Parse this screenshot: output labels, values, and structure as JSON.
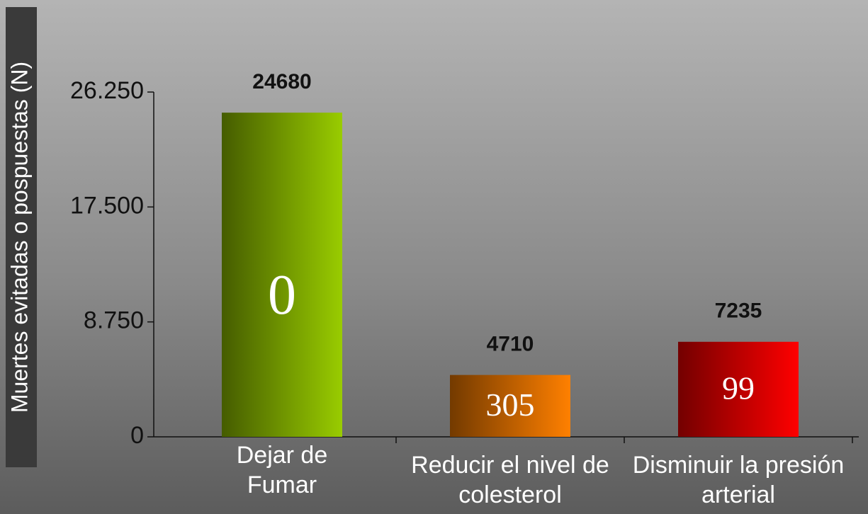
{
  "chart_data": {
    "type": "bar",
    "y_label": "Muertes evitadas o pospuestas (N)",
    "categories": [
      "Dejar de Fumar",
      "Reducir el nivel de colesterol",
      "Disminuir la presión arterial"
    ],
    "values": [
      24680,
      4710,
      7235
    ],
    "bar_annotations": [
      "0",
      "305",
      "99"
    ],
    "colors": [
      "#99cc00",
      "#ff8000",
      "#ff0000"
    ],
    "ylim": [
      0,
      26250
    ],
    "yticks": [
      0,
      {
        "value": 8750,
        "label": "8.750"
      },
      {
        "value": 17500,
        "label": "17.500"
      },
      {
        "value": 26250,
        "label": "26.250"
      }
    ]
  }
}
